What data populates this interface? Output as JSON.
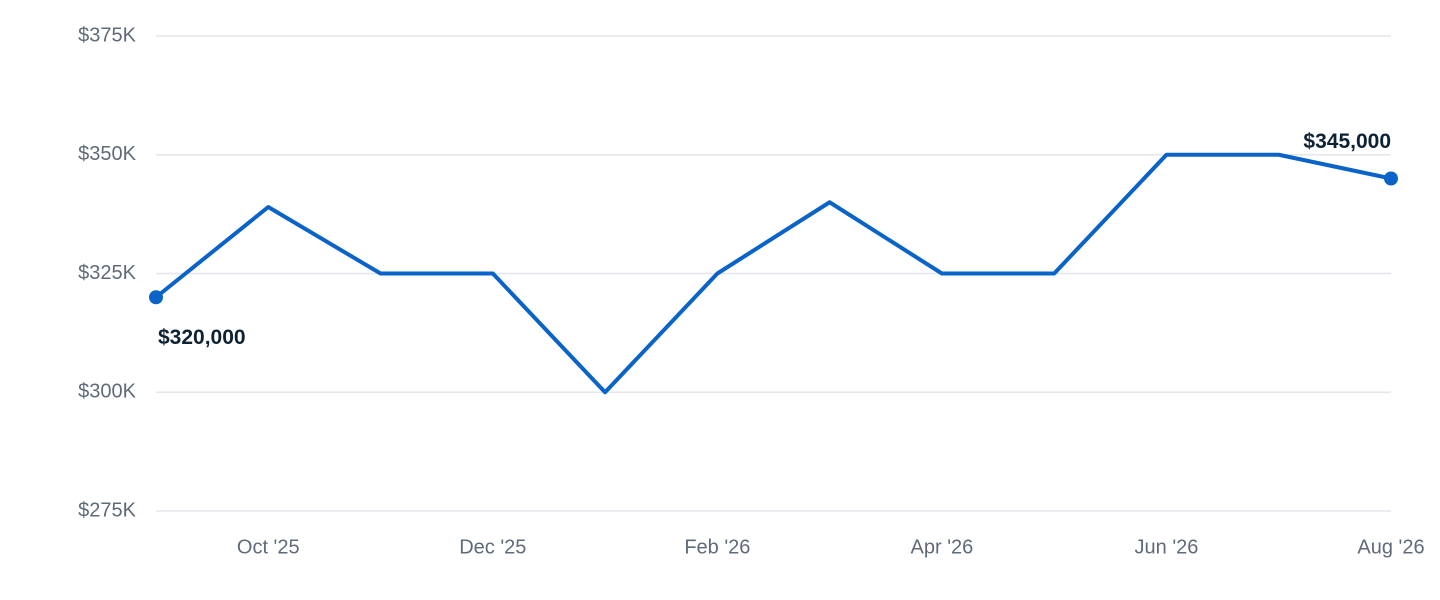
{
  "chart_data": {
    "type": "line",
    "categories": [
      null,
      "Oct '25",
      null,
      "Dec '25",
      null,
      "Feb '26",
      null,
      "Apr '26",
      null,
      "Jun '26",
      null,
      "Aug '26"
    ],
    "series": [
      {
        "color": "#0a63c9",
        "values": [
          320000,
          339000,
          325000,
          325000,
          300000,
          325000,
          340000,
          325000,
          325000,
          350000,
          350000,
          345000
        ],
        "value_labels": [
          "$320,000",
          null,
          null,
          null,
          null,
          null,
          null,
          null,
          null,
          null,
          null,
          "$345,000"
        ]
      }
    ],
    "ylim": [
      275000,
      375000
    ],
    "yticks": [
      {
        "value": 275000,
        "label": "$275K"
      },
      {
        "value": 300000,
        "label": "$300K"
      },
      {
        "value": 325000,
        "label": "$325K"
      },
      {
        "value": 350000,
        "label": "$350K"
      },
      {
        "value": 375000,
        "label": "$375K"
      }
    ],
    "grid": true
  }
}
